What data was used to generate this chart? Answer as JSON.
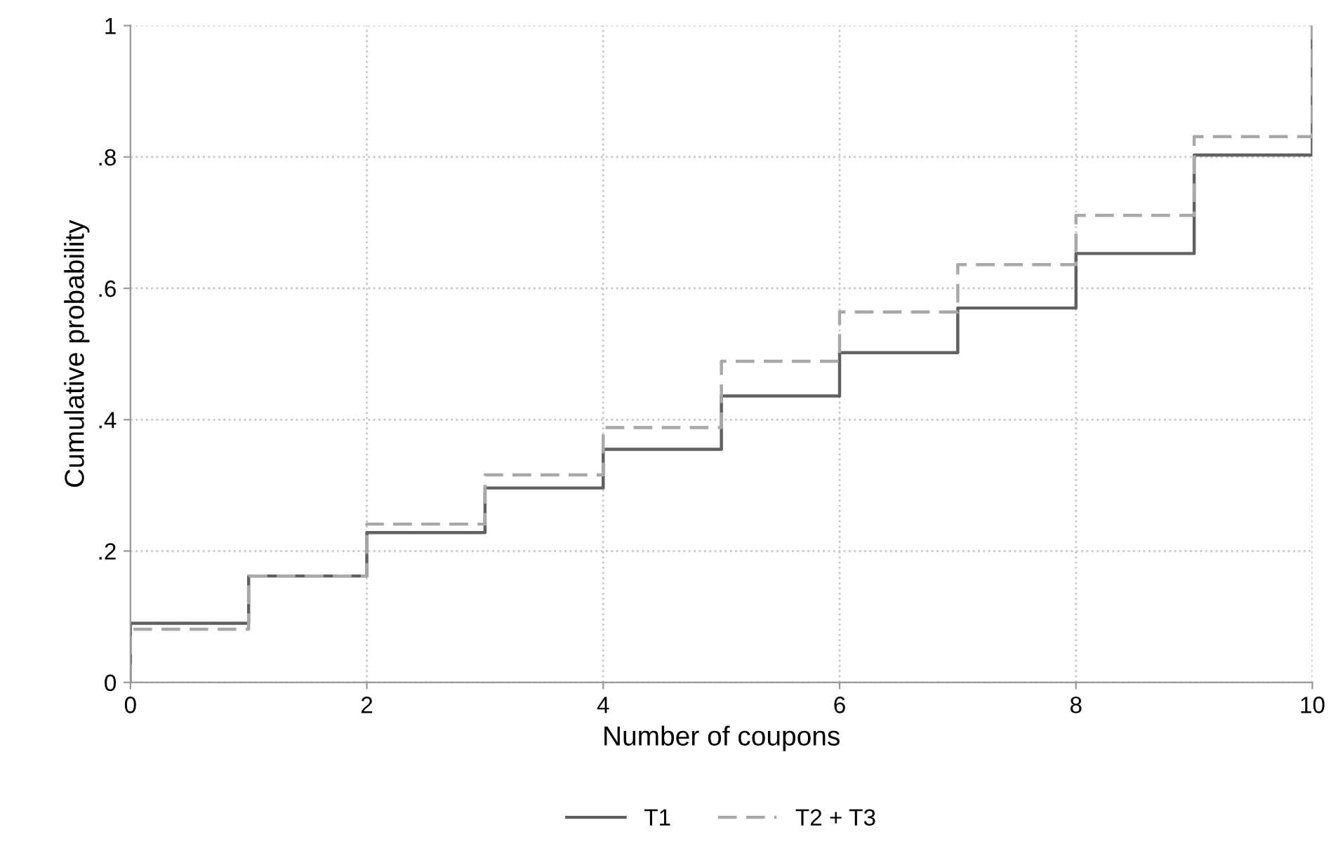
{
  "chart_data": {
    "type": "step",
    "xlabel": "Number of coupons",
    "ylabel": "Cumulative probability",
    "xlim": [
      0,
      10
    ],
    "xticks": [
      0,
      2,
      4,
      6,
      8,
      10
    ],
    "ylim": [
      0,
      1
    ],
    "yticks": [
      0,
      {
        "value": 0.2,
        "label": ".2"
      },
      {
        "value": 0.4,
        "label": ".4"
      },
      {
        "value": 0.6,
        "label": ".6"
      },
      {
        "value": 0.8,
        "label": ".8"
      },
      1
    ],
    "grid": true,
    "legend": "bottom",
    "series": [
      {
        "name": "T1",
        "color": "#606060",
        "line_style": "solid",
        "x": [
          0,
          0,
          1,
          2,
          3,
          4,
          5,
          6,
          7,
          8,
          9,
          10
        ],
        "values": [
          0,
          0.09,
          0.162,
          0.228,
          0.296,
          0.355,
          0.436,
          0.502,
          0.57,
          0.653,
          0.803,
          1
        ]
      },
      {
        "name": "T2 + T3",
        "color": "#a8a8a8",
        "line_style": "dashed",
        "x": [
          0,
          0,
          1,
          2,
          3,
          4,
          5,
          6,
          7,
          8,
          9,
          10
        ],
        "values": [
          0,
          0.081,
          0.162,
          0.241,
          0.316,
          0.388,
          0.489,
          0.564,
          0.636,
          0.711,
          0.831,
          1
        ]
      }
    ]
  }
}
